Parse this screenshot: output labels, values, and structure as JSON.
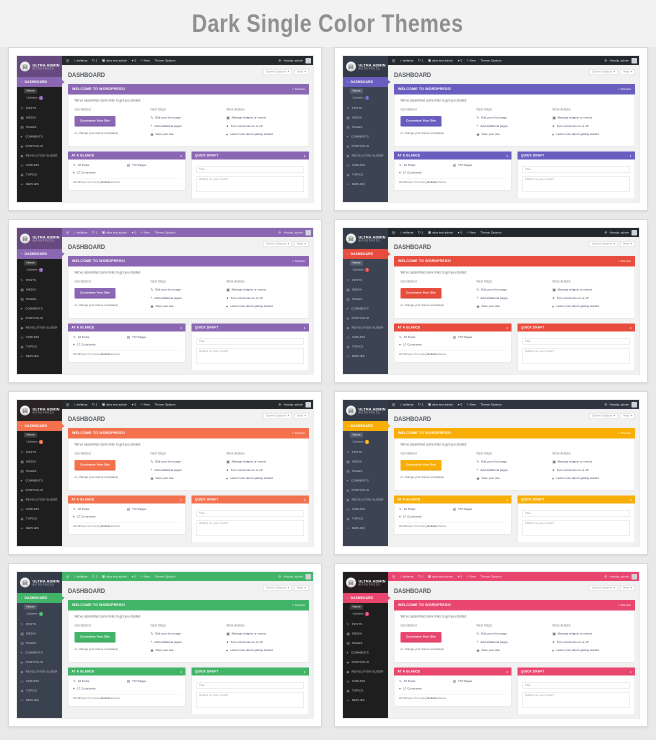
{
  "page": {
    "title": "Dark Single Color Themes",
    "title_color": "#8f8f8f",
    "background": "#e9e9e9"
  },
  "themes": [
    {
      "name": "purple-dark",
      "accent": "#8b66b3",
      "accent_dark": "#7a55a2",
      "topbar": "#26282b",
      "sidebar": "#1e1e1e",
      "logo_bg": "#66497e"
    },
    {
      "name": "indigo-slate",
      "accent": "#6a5dc0",
      "accent_dark": "#5c4fb2",
      "topbar": "#23272e",
      "sidebar": "#3c4454",
      "logo_bg": "#333b49"
    },
    {
      "name": "purple-top",
      "accent": "#8b66b3",
      "accent_dark": "#7a55a2",
      "topbar": "#8b66b3",
      "sidebar": "#1e1e1e",
      "logo_bg": "#66497e"
    },
    {
      "name": "red-slate",
      "accent": "#e84c3d",
      "accent_dark": "#d6402f",
      "topbar": "#23272e",
      "sidebar": "#3c4454",
      "logo_bg": "#333b49"
    },
    {
      "name": "orange-dark",
      "accent": "#f4714e",
      "accent_dark": "#e4603c",
      "topbar": "#26282b",
      "sidebar": "#1e1e1e",
      "logo_bg": "#2a2326"
    },
    {
      "name": "amber-slate",
      "accent": "#f9ae06",
      "accent_dark": "#e89d00",
      "topbar": "#2f3540",
      "sidebar": "#3c4454",
      "logo_bg": "#333b49"
    },
    {
      "name": "green-slate",
      "accent": "#41b467",
      "accent_dark": "#379f58",
      "topbar": "#41b467",
      "sidebar": "#3a424f",
      "logo_bg": "#333b49"
    },
    {
      "name": "pink-dark",
      "accent": "#e9466f",
      "accent_dark": "#d8355e",
      "topbar": "#e9466f",
      "sidebar": "#1e1e1e",
      "logo_bg": "#241d1f"
    }
  ],
  "icons": {
    "wp-logo": "Ⓦ",
    "home": "⌂",
    "refresh": "↻",
    "folder": "▣",
    "bubble": "●",
    "plus": "+",
    "gear": "⚙",
    "caret-down": "▾",
    "collapse-arrow": "▴",
    "close": "×",
    "gauge": "◔",
    "pin": "✎",
    "camera": "▦",
    "page": "▤",
    "portfolio": "◈",
    "slider": "◆",
    "forum": "◎",
    "topic": "◉",
    "reply": "↩",
    "eye": "◉",
    "widgets": "▦",
    "arrow-right": "▸"
  },
  "dashboard": {
    "logo": {
      "line1": "ULTRA ADMIN",
      "line2": "WORDPRESS"
    },
    "admin_bar": {
      "site": "bellaina",
      "update_count": "1",
      "network": "ultra test admin",
      "comment_count": "0",
      "new_label": "New",
      "theme_options": "Theme Options",
      "howdy": "Howdy, admin"
    },
    "toolbar": {
      "screen_options": "Screen Options",
      "help": "Help"
    },
    "page_title": "DASHBOARD",
    "sidebar": {
      "dashboard": "DASHBOARD",
      "home": "Home",
      "updates": "Updates",
      "update_badge": "1",
      "items": [
        "POSTS",
        "MEDIA",
        "PAGES",
        "COMMENTS",
        "PORTFOLIO",
        "REVOLUTION SLIDER",
        "FORUMS",
        "TOPICS",
        "REPLIES"
      ]
    },
    "welcome": {
      "title": "WELCOME TO WORDPRESS!",
      "dismiss": "Dismiss",
      "intro": "We've assembled some links to get you started:",
      "get_started": {
        "heading": "Get Started",
        "button": "Customize Your Site",
        "alt": "or, change your theme completely"
      },
      "next_steps": {
        "heading": "Next Steps",
        "items": [
          "Edit your front page",
          "Add additional pages",
          "View your site"
        ]
      },
      "more_actions": {
        "heading": "More Actions",
        "items": [
          "Manage widgets or menus",
          "Turn comments on or off",
          "Learn more about getting started"
        ]
      }
    },
    "at_a_glance": {
      "title": "AT A GLANCE",
      "posts": "16 Posts",
      "pages": "772 Pages",
      "comments": "17 Comments",
      "version_prefix": "WordPress 4.5 running",
      "version_theme": "Bellaina",
      "version_suffix": "theme."
    },
    "quick_draft": {
      "title": "QUICK DRAFT",
      "title_placeholder": "Title",
      "body_placeholder": "What's on your mind?"
    }
  }
}
